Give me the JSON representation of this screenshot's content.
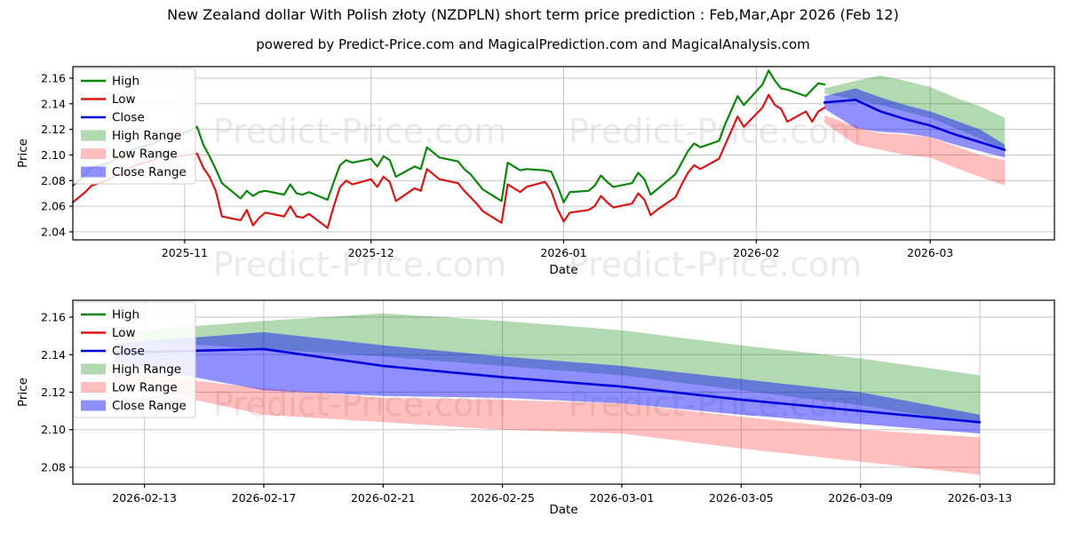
{
  "figure": {
    "title": "New Zealand dollar With Polish złoty (NZDPLN) short term price prediction : Feb,Mar,Apr 2026 (Feb 12)",
    "subtitle": "powered by Predict-Price.com and MagicalPrediction.com and MagicalAnalysis.com",
    "watermark": "Predict-Price.com",
    "background": "#ffffff"
  },
  "colors": {
    "high": "#0a870a",
    "low": "#dd1414",
    "close": "#0000dd",
    "high_range": "rgba(0,128,0,0.30)",
    "low_range": "rgba(255,0,0,0.25)",
    "close_range": "rgba(0,0,255,0.44)",
    "grid": "#c6c6c6",
    "spine": "#000000",
    "text": "#000000",
    "watermark": "rgba(0,0,0,0.085)",
    "legend_border": "#cccccc",
    "legend_bg": "#ffffff"
  },
  "legend": {
    "items": [
      {
        "label": "High",
        "swatch": "line",
        "color_key": "high"
      },
      {
        "label": "Low",
        "swatch": "line",
        "color_key": "low"
      },
      {
        "label": "Close",
        "swatch": "line",
        "color_key": "close"
      },
      {
        "label": "High Range",
        "swatch": "patch",
        "color_key": "high_range"
      },
      {
        "label": "Low Range",
        "swatch": "patch",
        "color_key": "low_range"
      },
      {
        "label": "Close Range",
        "swatch": "patch",
        "color_key": "close_range"
      }
    ]
  },
  "chart_data": [
    {
      "type": "line",
      "name": "history-with-prediction",
      "xlabel": "Date",
      "ylabel": "Price",
      "x_unit": "days since 2025-10-14",
      "x_domain": [
        0,
        158
      ],
      "ylim": [
        2.0337,
        2.169
      ],
      "grid": true,
      "legend_position": "upper left",
      "yticks": [
        {
          "value": 2.16,
          "label": "2.16"
        },
        {
          "value": 2.14,
          "label": "2.14"
        },
        {
          "value": 2.12,
          "label": "2.12"
        },
        {
          "value": 2.1,
          "label": "2.10"
        },
        {
          "value": 2.08,
          "label": "2.08"
        },
        {
          "value": 2.06,
          "label": "2.06"
        },
        {
          "value": 2.04,
          "label": "2.04"
        }
      ],
      "xticks": [
        {
          "d": 18,
          "label": "2025-11"
        },
        {
          "d": 48,
          "label": "2025-12"
        },
        {
          "d": 79,
          "label": "2026-01"
        },
        {
          "d": 110,
          "label": "2026-02"
        },
        {
          "d": 138,
          "label": "2026-03"
        }
      ],
      "series": {
        "high": [
          [
            0,
            2.076
          ],
          [
            1,
            2.08
          ],
          [
            2,
            2.085
          ],
          [
            3,
            2.09
          ],
          [
            6,
            2.094
          ],
          [
            7,
            2.098
          ],
          [
            8,
            2.097
          ],
          [
            9,
            2.102
          ],
          [
            10,
            2.105
          ],
          [
            13,
            2.109
          ],
          [
            14,
            2.112
          ],
          [
            15,
            2.116
          ],
          [
            16,
            2.113
          ],
          [
            17,
            2.115
          ],
          [
            20,
            2.122
          ],
          [
            21,
            2.108
          ],
          [
            22,
            2.099
          ],
          [
            23,
            2.089
          ],
          [
            24,
            2.078
          ],
          [
            27,
            2.066
          ],
          [
            28,
            2.072
          ],
          [
            29,
            2.068
          ],
          [
            30,
            2.071
          ],
          [
            31,
            2.072
          ],
          [
            34,
            2.069
          ],
          [
            35,
            2.077
          ],
          [
            36,
            2.07
          ],
          [
            37,
            2.069
          ],
          [
            38,
            2.071
          ],
          [
            41,
            2.065
          ],
          [
            42,
            2.079
          ],
          [
            43,
            2.092
          ],
          [
            44,
            2.096
          ],
          [
            45,
            2.094
          ],
          [
            48,
            2.097
          ],
          [
            49,
            2.091
          ],
          [
            50,
            2.099
          ],
          [
            51,
            2.096
          ],
          [
            52,
            2.083
          ],
          [
            55,
            2.091
          ],
          [
            56,
            2.089
          ],
          [
            57,
            2.106
          ],
          [
            58,
            2.102
          ],
          [
            59,
            2.098
          ],
          [
            62,
            2.095
          ],
          [
            63,
            2.089
          ],
          [
            64,
            2.085
          ],
          [
            65,
            2.079
          ],
          [
            66,
            2.073
          ],
          [
            69,
            2.064
          ],
          [
            70,
            2.094
          ],
          [
            71,
            2.091
          ],
          [
            72,
            2.088
          ],
          [
            73,
            2.089
          ],
          [
            76,
            2.088
          ],
          [
            77,
            2.087
          ],
          [
            78,
            2.076
          ],
          [
            79,
            2.063
          ],
          [
            80,
            2.071
          ],
          [
            83,
            2.072
          ],
          [
            84,
            2.076
          ],
          [
            85,
            2.084
          ],
          [
            86,
            2.079
          ],
          [
            87,
            2.075
          ],
          [
            90,
            2.078
          ],
          [
            91,
            2.086
          ],
          [
            92,
            2.081
          ],
          [
            93,
            2.069
          ],
          [
            94,
            2.073
          ],
          [
            97,
            2.085
          ],
          [
            98,
            2.094
          ],
          [
            99,
            2.103
          ],
          [
            100,
            2.109
          ],
          [
            101,
            2.106
          ],
          [
            104,
            2.111
          ],
          [
            105,
            2.124
          ],
          [
            106,
            2.135
          ],
          [
            107,
            2.146
          ],
          [
            108,
            2.139
          ],
          [
            111,
            2.155
          ],
          [
            112,
            2.166
          ],
          [
            113,
            2.158
          ],
          [
            114,
            2.152
          ],
          [
            115,
            2.151
          ],
          [
            118,
            2.146
          ],
          [
            119,
            2.151
          ],
          [
            120,
            2.156
          ],
          [
            121,
            2.155
          ]
        ],
        "low": [
          [
            0,
            2.063
          ],
          [
            1,
            2.067
          ],
          [
            2,
            2.071
          ],
          [
            3,
            2.076
          ],
          [
            6,
            2.081
          ],
          [
            7,
            2.085
          ],
          [
            8,
            2.084
          ],
          [
            9,
            2.089
          ],
          [
            10,
            2.092
          ],
          [
            13,
            2.096
          ],
          [
            14,
            2.1
          ],
          [
            15,
            2.103
          ],
          [
            16,
            2.101
          ],
          [
            17,
            2.099
          ],
          [
            20,
            2.101
          ],
          [
            21,
            2.09
          ],
          [
            22,
            2.083
          ],
          [
            23,
            2.072
          ],
          [
            24,
            2.052
          ],
          [
            27,
            2.049
          ],
          [
            28,
            2.057
          ],
          [
            29,
            2.045
          ],
          [
            30,
            2.051
          ],
          [
            31,
            2.055
          ],
          [
            34,
            2.052
          ],
          [
            35,
            2.06
          ],
          [
            36,
            2.052
          ],
          [
            37,
            2.051
          ],
          [
            38,
            2.054
          ],
          [
            41,
            2.043
          ],
          [
            42,
            2.06
          ],
          [
            43,
            2.075
          ],
          [
            44,
            2.08
          ],
          [
            45,
            2.077
          ],
          [
            48,
            2.081
          ],
          [
            49,
            2.075
          ],
          [
            50,
            2.083
          ],
          [
            51,
            2.079
          ],
          [
            52,
            2.064
          ],
          [
            55,
            2.074
          ],
          [
            56,
            2.072
          ],
          [
            57,
            2.089
          ],
          [
            58,
            2.085
          ],
          [
            59,
            2.081
          ],
          [
            62,
            2.078
          ],
          [
            63,
            2.072
          ],
          [
            64,
            2.067
          ],
          [
            65,
            2.062
          ],
          [
            66,
            2.056
          ],
          [
            69,
            2.047
          ],
          [
            70,
            2.077
          ],
          [
            71,
            2.074
          ],
          [
            72,
            2.071
          ],
          [
            73,
            2.075
          ],
          [
            76,
            2.079
          ],
          [
            77,
            2.072
          ],
          [
            78,
            2.058
          ],
          [
            79,
            2.048
          ],
          [
            80,
            2.055
          ],
          [
            83,
            2.057
          ],
          [
            84,
            2.06
          ],
          [
            85,
            2.068
          ],
          [
            86,
            2.063
          ],
          [
            87,
            2.059
          ],
          [
            90,
            2.062
          ],
          [
            91,
            2.07
          ],
          [
            92,
            2.065
          ],
          [
            93,
            2.053
          ],
          [
            94,
            2.057
          ],
          [
            97,
            2.067
          ],
          [
            98,
            2.077
          ],
          [
            99,
            2.086
          ],
          [
            100,
            2.092
          ],
          [
            101,
            2.089
          ],
          [
            104,
            2.097
          ],
          [
            105,
            2.108
          ],
          [
            106,
            2.119
          ],
          [
            107,
            2.13
          ],
          [
            108,
            2.122
          ],
          [
            111,
            2.137
          ],
          [
            112,
            2.147
          ],
          [
            113,
            2.139
          ],
          [
            114,
            2.136
          ],
          [
            115,
            2.126
          ],
          [
            118,
            2.134
          ],
          [
            119,
            2.126
          ],
          [
            120,
            2.134
          ],
          [
            121,
            2.137
          ]
        ]
      },
      "prediction": {
        "d": [
          121,
          126,
          130,
          134,
          138,
          142,
          146,
          150
        ],
        "close": [
          2.141,
          2.143,
          2.134,
          2.128,
          2.123,
          2.116,
          2.11,
          2.104
        ],
        "close_upper": [
          2.146,
          2.152,
          2.145,
          2.139,
          2.134,
          2.127,
          2.12,
          2.108
        ],
        "close_lower": [
          2.136,
          2.121,
          2.118,
          2.117,
          2.114,
          2.108,
          2.103,
          2.098
        ],
        "high_upper": [
          2.152,
          2.158,
          2.162,
          2.158,
          2.153,
          2.145,
          2.138,
          2.129
        ],
        "high_lower": [
          2.148,
          2.143,
          2.139,
          2.134,
          2.129,
          2.121,
          2.113,
          2.103
        ],
        "low_upper": [
          2.131,
          2.122,
          2.117,
          2.116,
          2.114,
          2.107,
          2.1,
          2.096
        ],
        "low_lower": [
          2.125,
          2.108,
          2.104,
          2.1,
          2.098,
          2.09,
          2.083,
          2.076
        ]
      }
    },
    {
      "type": "line",
      "name": "prediction-zoom",
      "xlabel": "Date",
      "ylabel": "Price",
      "x_unit": "days since 2025-10-14",
      "x_domain": [
        119.6,
        152.5
      ],
      "ylim": [
        2.071,
        2.169
      ],
      "grid": true,
      "legend_position": "upper left",
      "yticks": [
        {
          "value": 2.16,
          "label": "2.16"
        },
        {
          "value": 2.14,
          "label": "2.14"
        },
        {
          "value": 2.12,
          "label": "2.12"
        },
        {
          "value": 2.1,
          "label": "2.10"
        },
        {
          "value": 2.08,
          "label": "2.08"
        }
      ],
      "xticks": [
        {
          "d": 122,
          "label": "2026-02-13"
        },
        {
          "d": 126,
          "label": "2026-02-17"
        },
        {
          "d": 130,
          "label": "2026-02-21"
        },
        {
          "d": 134,
          "label": "2026-02-25"
        },
        {
          "d": 138,
          "label": "2026-03-01"
        },
        {
          "d": 142,
          "label": "2026-03-05"
        },
        {
          "d": 146,
          "label": "2026-03-09"
        },
        {
          "d": 150,
          "label": "2026-03-13"
        }
      ],
      "prediction": {
        "d": [
          121,
          126,
          130,
          134,
          138,
          142,
          146,
          150
        ],
        "close": [
          2.141,
          2.143,
          2.134,
          2.128,
          2.123,
          2.116,
          2.11,
          2.104
        ],
        "close_upper": [
          2.146,
          2.152,
          2.145,
          2.139,
          2.134,
          2.127,
          2.12,
          2.108
        ],
        "close_lower": [
          2.136,
          2.121,
          2.118,
          2.117,
          2.114,
          2.108,
          2.103,
          2.098
        ],
        "high_upper": [
          2.152,
          2.158,
          2.162,
          2.158,
          2.153,
          2.145,
          2.138,
          2.129
        ],
        "high_lower": [
          2.148,
          2.143,
          2.139,
          2.134,
          2.129,
          2.121,
          2.113,
          2.103
        ],
        "low_upper": [
          2.131,
          2.122,
          2.117,
          2.116,
          2.114,
          2.107,
          2.1,
          2.096
        ],
        "low_lower": [
          2.125,
          2.108,
          2.104,
          2.1,
          2.098,
          2.09,
          2.083,
          2.076
        ]
      }
    }
  ]
}
